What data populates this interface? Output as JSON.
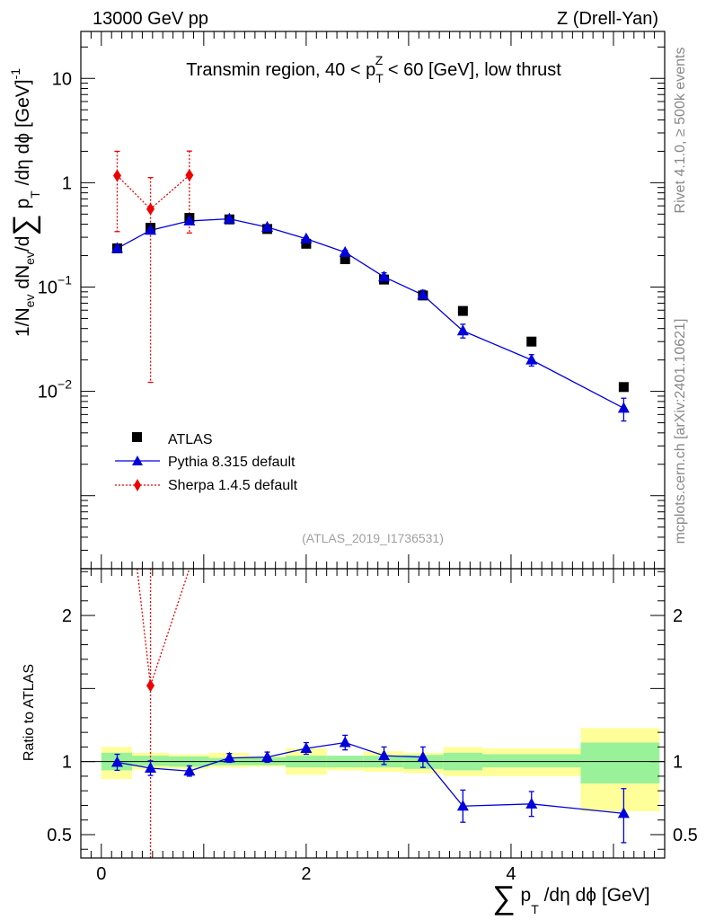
{
  "header": {
    "left": "13000 GeV pp",
    "right": "Z (Drell-Yan)"
  },
  "side_labels": {
    "rivet": "Rivet 4.1.0, ≥ 500k events",
    "mcplots": "mcplots.cern.ch [arXiv:2401.10621]"
  },
  "colors": {
    "atlas": "#000000",
    "pythia": "#0000dd",
    "sherpa": "#ee0000",
    "band_inner": "#99f299",
    "band_outer": "#ffff99"
  },
  "chart_data": [
    {
      "type": "scatter",
      "panel": "main",
      "title_parts": {
        "before": "Transmin region, 40 < p",
        "sub": "T",
        "sup": "Z",
        "after": " < 60 [GeV], low thrust"
      },
      "ylabel_parts": [
        "1/N",
        "ev",
        " dN",
        "ev",
        "/d",
        "∑",
        " p",
        "T",
        " /dη dϕ  [GeV]",
        "-1"
      ],
      "xlabel_parts": [
        "∑",
        " p",
        "T",
        " /dη dϕ [GeV]"
      ],
      "watermark": "(ATLAS_2019_I1736531)",
      "xlim": [
        -0.2,
        5.5
      ],
      "ylim_log10": [
        -3.7,
        1.45
      ],
      "yscale": "log",
      "y_ticks": [
        {
          "value": 10,
          "label": "10",
          "sup": ""
        },
        {
          "value": 1,
          "label": "1",
          "sup": ""
        },
        {
          "value": 0.1,
          "label": "10",
          "sup": "−1"
        },
        {
          "value": 0.01,
          "label": "10",
          "sup": "−2"
        }
      ],
      "x_ticks": [
        {
          "value": 0,
          "label": "0"
        },
        {
          "value": 2,
          "label": "2"
        },
        {
          "value": 4,
          "label": "4"
        }
      ],
      "legend": [
        {
          "key": "atlas",
          "label": "ATLAS"
        },
        {
          "key": "pythia",
          "label": "Pythia 8.315 default"
        },
        {
          "key": "sherpa",
          "label": "Sherpa 1.4.5 default"
        }
      ],
      "series": [
        {
          "name": "ATLAS",
          "key": "atlas",
          "x": [
            0.155,
            0.48,
            0.86,
            1.25,
            1.62,
            2.0,
            2.38,
            2.76,
            3.14,
            3.53,
            4.2,
            5.1
          ],
          "y": [
            0.235,
            0.37,
            0.46,
            0.445,
            0.36,
            0.26,
            0.185,
            0.118,
            0.083,
            0.059,
            0.03,
            0.011
          ]
        },
        {
          "name": "Pythia 8.315 default",
          "key": "pythia",
          "x": [
            0.155,
            0.48,
            0.86,
            1.25,
            1.62,
            2.0,
            2.38,
            2.76,
            3.14,
            3.53,
            4.2,
            5.1
          ],
          "y": [
            0.235,
            0.35,
            0.43,
            0.45,
            0.375,
            0.29,
            0.215,
            0.125,
            0.084,
            0.038,
            0.02,
            0.0069
          ],
          "err_lo": [
            0.01,
            0.01,
            0.015,
            0.01,
            0.01,
            0.01,
            0.01,
            0.01,
            0.008,
            0.0055,
            0.0025,
            0.0017
          ],
          "err_hi": [
            0.01,
            0.01,
            0.015,
            0.01,
            0.01,
            0.01,
            0.01,
            0.012,
            0.009,
            0.006,
            0.0025,
            0.0017
          ]
        },
        {
          "name": "Sherpa 1.4.5 default",
          "key": "sherpa",
          "x": [
            0.155,
            0.48,
            0.86
          ],
          "y": [
            1.17,
            0.56,
            1.18
          ],
          "err_lo": [
            0.83,
            0.5478,
            0.85
          ],
          "err_hi": [
            0.83,
            0.56,
            0.83
          ]
        }
      ]
    },
    {
      "type": "scatter",
      "panel": "ratio",
      "ylabel": "Ratio to ATLAS",
      "xlim": [
        -0.2,
        5.5
      ],
      "ylim": [
        0.34,
        2.32
      ],
      "y_ticks": [
        {
          "value": 0.5,
          "label": "0.5"
        },
        {
          "value": 1,
          "label": "1"
        },
        {
          "value": 2,
          "label": "2"
        }
      ],
      "bands": {
        "edges": [
          0.0,
          0.3,
          0.66,
          1.05,
          1.44,
          1.8,
          2.2,
          2.56,
          2.95,
          3.34,
          3.72,
          4.68,
          5.45
        ],
        "inner_lo": [
          0.94,
          0.97,
          0.965,
          0.975,
          0.975,
          0.96,
          0.96,
          0.96,
          0.95,
          0.94,
          0.96,
          0.85
        ],
        "inner_hi": [
          1.06,
          1.04,
          1.035,
          1.025,
          1.03,
          1.04,
          1.04,
          1.04,
          1.045,
          1.06,
          1.05,
          1.13
        ],
        "outer_lo": [
          0.88,
          0.945,
          0.95,
          0.96,
          0.965,
          0.91,
          0.94,
          0.93,
          0.92,
          0.9,
          0.9,
          0.66
        ],
        "outer_hi": [
          1.1,
          1.06,
          1.05,
          1.06,
          1.04,
          1.09,
          1.04,
          1.07,
          1.06,
          1.1,
          1.09,
          1.23
        ]
      },
      "series": [
        {
          "name": "Pythia 8.315 default",
          "key": "pythia",
          "x": [
            0.155,
            0.48,
            0.86,
            1.25,
            1.62,
            2.0,
            2.38,
            2.76,
            3.14,
            3.53,
            4.2,
            5.1
          ],
          "y": [
            0.995,
            0.955,
            0.935,
            1.025,
            1.03,
            1.09,
            1.13,
            1.04,
            1.03,
            0.695,
            0.71,
            0.645
          ],
          "err_lo": [
            0.055,
            0.05,
            0.035,
            0.03,
            0.035,
            0.04,
            0.05,
            0.06,
            0.07,
            0.11,
            0.085,
            0.2
          ],
          "err_hi": [
            0.055,
            0.05,
            0.035,
            0.03,
            0.035,
            0.04,
            0.05,
            0.06,
            0.07,
            0.11,
            0.085,
            0.17
          ]
        },
        {
          "name": "Sherpa 1.4.5 default",
          "key": "sherpa",
          "x": [
            0.48
          ],
          "y": [
            1.52
          ],
          "err_lo": [
            1.5
          ],
          "err_hi": [
            2.0
          ]
        }
      ],
      "sherpa_line_ends": {
        "x": [
          0.35,
          0.86
        ],
        "y": [
          2.32,
          2.32
        ]
      }
    }
  ]
}
